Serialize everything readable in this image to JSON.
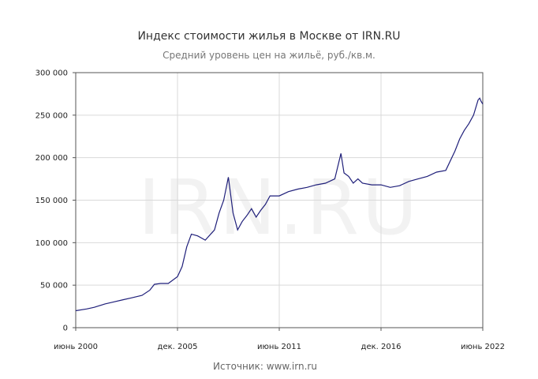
{
  "chart_data": {
    "type": "line",
    "title": "Индекс стоимости жилья в Москве от IRN.RU",
    "subtitle": "Средний уровень цен на жильё, руб./кв.м.",
    "source": "Источник: www.irn.ru",
    "watermark": "IRN.RU",
    "xlabel": "",
    "ylabel": "",
    "x_ticks": [
      "июнь 2000",
      "дек. 2005",
      "июнь 2011",
      "дек. 2016",
      "июнь 2022"
    ],
    "y_ticks": [
      "0",
      "50 000",
      "100 000",
      "150 000",
      "200 000",
      "250 000",
      "300 000"
    ],
    "ylim": [
      0,
      300000
    ],
    "grid": true,
    "line_color": "#1f1f7a",
    "x_unit": "date (YYYY-MM)",
    "series": [
      {
        "x": [
          "2000-06",
          "2001-01",
          "2001-06",
          "2002-01",
          "2002-06",
          "2003-01",
          "2003-06",
          "2004-01",
          "2004-06",
          "2004-09",
          "2005-01",
          "2005-06",
          "2005-12",
          "2006-03",
          "2006-06",
          "2006-09",
          "2007-01",
          "2007-06",
          "2007-12",
          "2008-03",
          "2008-06",
          "2008-09",
          "2008-12",
          "2009-03",
          "2009-06",
          "2009-09",
          "2009-12",
          "2010-03",
          "2010-06",
          "2010-09",
          "2010-12",
          "2011-06",
          "2011-12",
          "2012-06",
          "2012-12",
          "2013-06",
          "2013-12",
          "2014-06",
          "2014-10",
          "2014-12",
          "2015-03",
          "2015-06",
          "2015-09",
          "2015-12",
          "2016-06",
          "2016-12",
          "2017-06",
          "2017-12",
          "2018-06",
          "2018-12",
          "2019-06",
          "2019-12",
          "2020-06",
          "2020-12",
          "2021-03",
          "2021-06",
          "2021-09",
          "2021-12",
          "2022-03",
          "2022-04",
          "2022-05",
          "2022-06"
        ],
        "values": [
          20000,
          22000,
          24000,
          28000,
          30000,
          33000,
          35000,
          38000,
          44000,
          51000,
          52000,
          52000,
          60000,
          72000,
          95000,
          110000,
          108000,
          103000,
          115000,
          135000,
          150000,
          177000,
          135000,
          115000,
          125000,
          132000,
          140000,
          130000,
          138000,
          145000,
          155000,
          155000,
          160000,
          163000,
          165000,
          168000,
          170000,
          175000,
          205000,
          182000,
          178000,
          170000,
          175000,
          170000,
          168000,
          168000,
          165000,
          167000,
          172000,
          175000,
          178000,
          183000,
          185000,
          208000,
          222000,
          232000,
          240000,
          250000,
          268000,
          270000,
          266000,
          263000
        ]
      }
    ]
  }
}
